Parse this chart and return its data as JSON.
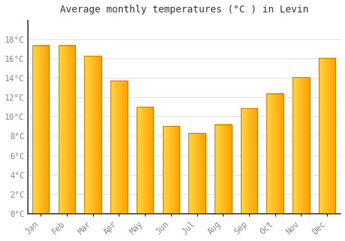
{
  "title": "Average monthly temperatures (°C ) in Levin",
  "months": [
    "Jan",
    "Feb",
    "Mar",
    "Apr",
    "May",
    "Jun",
    "Jul",
    "Aug",
    "Sep",
    "Oct",
    "Nov",
    "Dec"
  ],
  "values": [
    17.4,
    17.4,
    16.3,
    13.7,
    11.0,
    9.0,
    8.3,
    9.2,
    10.9,
    12.4,
    14.1,
    16.1
  ],
  "bar_color_left": "#FFD740",
  "bar_color_right": "#FFA000",
  "bar_edge_color": "#CC7700",
  "background_color": "#FFFFFF",
  "plot_bg_color": "#FFFFFF",
  "grid_color": "#E0E0E0",
  "ylim": [
    0,
    20
  ],
  "yticks": [
    0,
    2,
    4,
    6,
    8,
    10,
    12,
    14,
    16,
    18
  ],
  "title_fontsize": 10,
  "tick_fontsize": 8.5,
  "tick_color": "#888888",
  "title_color": "#333333",
  "spine_color": "#000000",
  "figsize": [
    5.0,
    3.5
  ],
  "dpi": 100
}
